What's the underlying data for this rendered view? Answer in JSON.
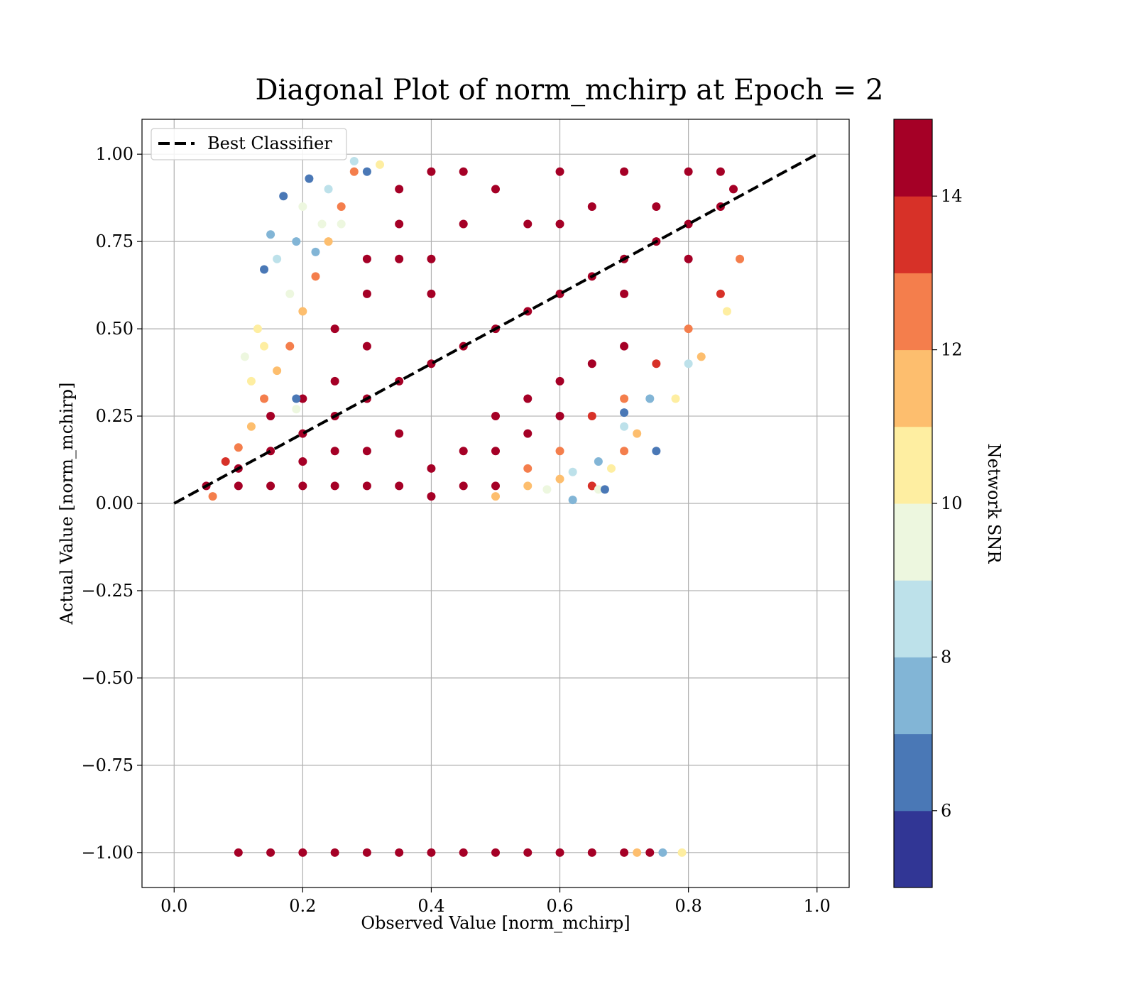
{
  "chart_data": {
    "type": "scatter",
    "title": "Diagonal Plot of norm_mchirp at Epoch = 2",
    "xlabel": "Observed Value [norm_mchirp]",
    "ylabel": "Actual Value [norm_mchirp]",
    "xlim": [
      -0.05,
      1.05
    ],
    "ylim": [
      -1.1,
      1.1
    ],
    "xticks": [
      0.0,
      0.2,
      0.4,
      0.6,
      0.8,
      1.0
    ],
    "xtick_labels": [
      "0.0",
      "0.2",
      "0.4",
      "0.6",
      "0.8",
      "1.0"
    ],
    "yticks": [
      1.0,
      0.75,
      0.5,
      0.25,
      0.0,
      -0.25,
      -0.5,
      -0.75,
      -1.0
    ],
    "ytick_labels": [
      "1.00",
      "0.75",
      "0.50",
      "0.25",
      "0.00",
      "−0.25",
      "−0.50",
      "−0.75",
      "−1.00"
    ],
    "grid": true,
    "legend": {
      "position": "top-left",
      "entries": [
        {
          "label": "Best Classifier",
          "style": "dashed",
          "color": "#000000"
        }
      ]
    },
    "reference_line": {
      "label": "Best Classifier",
      "x": [
        0.0,
        1.0
      ],
      "y": [
        0.0,
        1.0
      ]
    },
    "colorbar": {
      "label": "Network SNR",
      "range": [
        5,
        15
      ],
      "ticks": [
        6,
        8,
        10,
        12,
        14
      ],
      "tick_labels": [
        "6",
        "8",
        "10",
        "12",
        "14"
      ],
      "colors": [
        "#313695",
        "#4a78b6",
        "#82b5d6",
        "#bde1ea",
        "#edf7df",
        "#feeea1",
        "#fdbe6e",
        "#f47e4c",
        "#d73128",
        "#a50026"
      ]
    },
    "series": [
      {
        "marker": "circle",
        "colored_by": "Network SNR",
        "points": [
          [
            0.05,
            0.05,
            15
          ],
          [
            0.1,
            0.1,
            15
          ],
          [
            0.15,
            0.15,
            15
          ],
          [
            0.2,
            0.2,
            15
          ],
          [
            0.25,
            0.25,
            15
          ],
          [
            0.3,
            0.3,
            15
          ],
          [
            0.35,
            0.35,
            15
          ],
          [
            0.4,
            0.4,
            15
          ],
          [
            0.45,
            0.45,
            15
          ],
          [
            0.5,
            0.5,
            15
          ],
          [
            0.55,
            0.55,
            15
          ],
          [
            0.6,
            0.6,
            15
          ],
          [
            0.65,
            0.65,
            15
          ],
          [
            0.7,
            0.7,
            15
          ],
          [
            0.75,
            0.75,
            15
          ],
          [
            0.8,
            0.8,
            15
          ],
          [
            0.85,
            0.85,
            15
          ],
          [
            0.4,
            0.95,
            15
          ],
          [
            0.45,
            0.95,
            15
          ],
          [
            0.5,
            0.9,
            15
          ],
          [
            0.6,
            0.95,
            15
          ],
          [
            0.7,
            0.95,
            15
          ],
          [
            0.8,
            0.95,
            15
          ],
          [
            0.85,
            0.95,
            15
          ],
          [
            0.87,
            0.9,
            15
          ],
          [
            0.3,
            0.6,
            15
          ],
          [
            0.35,
            0.7,
            15
          ],
          [
            0.35,
            0.8,
            15
          ],
          [
            0.4,
            0.7,
            15
          ],
          [
            0.4,
            0.6,
            15
          ],
          [
            0.45,
            0.8,
            15
          ],
          [
            0.55,
            0.8,
            15
          ],
          [
            0.6,
            0.8,
            15
          ],
          [
            0.65,
            0.85,
            15
          ],
          [
            0.75,
            0.85,
            15
          ],
          [
            0.7,
            0.6,
            15
          ],
          [
            0.8,
            0.7,
            15
          ],
          [
            0.1,
            0.05,
            15
          ],
          [
            0.15,
            0.05,
            15
          ],
          [
            0.2,
            0.05,
            15
          ],
          [
            0.25,
            0.05,
            15
          ],
          [
            0.3,
            0.05,
            15
          ],
          [
            0.35,
            0.05,
            15
          ],
          [
            0.4,
            0.02,
            15
          ],
          [
            0.45,
            0.05,
            15
          ],
          [
            0.5,
            0.05,
            15
          ],
          [
            0.4,
            0.1,
            15
          ],
          [
            0.45,
            0.15,
            15
          ],
          [
            0.5,
            0.25,
            15
          ],
          [
            0.55,
            0.3,
            15
          ],
          [
            0.6,
            0.35,
            15
          ],
          [
            0.5,
            0.15,
            15
          ],
          [
            0.55,
            0.2,
            15
          ],
          [
            0.6,
            0.25,
            15
          ],
          [
            0.65,
            0.4,
            15
          ],
          [
            0.7,
            0.45,
            15
          ],
          [
            0.3,
            0.15,
            15
          ],
          [
            0.35,
            0.2,
            15
          ],
          [
            0.25,
            0.15,
            15
          ],
          [
            0.2,
            0.12,
            15
          ],
          [
            0.25,
            0.35,
            15
          ],
          [
            0.2,
            0.3,
            15
          ],
          [
            0.15,
            0.25,
            15
          ],
          [
            0.3,
            0.45,
            15
          ],
          [
            0.25,
            0.5,
            15
          ],
          [
            0.3,
            0.7,
            15
          ],
          [
            0.35,
            0.9,
            15
          ],
          [
            0.55,
            0.1,
            12
          ],
          [
            0.6,
            0.15,
            12
          ],
          [
            0.65,
            0.25,
            13
          ],
          [
            0.7,
            0.3,
            12
          ],
          [
            0.75,
            0.4,
            13
          ],
          [
            0.8,
            0.5,
            12
          ],
          [
            0.85,
            0.6,
            13
          ],
          [
            0.88,
            0.7,
            12
          ],
          [
            0.65,
            0.05,
            13
          ],
          [
            0.7,
            0.15,
            12
          ],
          [
            0.5,
            0.02,
            11
          ],
          [
            0.55,
            0.05,
            11
          ],
          [
            0.6,
            0.07,
            11
          ],
          [
            0.68,
            0.1,
            10
          ],
          [
            0.72,
            0.2,
            11
          ],
          [
            0.78,
            0.3,
            10
          ],
          [
            0.82,
            0.42,
            11
          ],
          [
            0.86,
            0.55,
            10
          ],
          [
            0.62,
            0.09,
            8
          ],
          [
            0.66,
            0.12,
            7
          ],
          [
            0.7,
            0.22,
            8
          ],
          [
            0.74,
            0.3,
            7
          ],
          [
            0.8,
            0.4,
            8
          ],
          [
            0.66,
            0.04,
            9
          ],
          [
            0.58,
            0.04,
            9
          ],
          [
            0.7,
            0.26,
            6
          ],
          [
            0.75,
            0.15,
            6
          ],
          [
            0.67,
            0.04,
            6
          ],
          [
            0.62,
            0.01,
            7
          ],
          [
            0.06,
            0.02,
            12
          ],
          [
            0.08,
            0.12,
            13
          ],
          [
            0.1,
            0.16,
            12
          ],
          [
            0.12,
            0.22,
            11
          ],
          [
            0.14,
            0.3,
            12
          ],
          [
            0.16,
            0.38,
            11
          ],
          [
            0.18,
            0.45,
            12
          ],
          [
            0.2,
            0.55,
            11
          ],
          [
            0.22,
            0.65,
            12
          ],
          [
            0.24,
            0.75,
            11
          ],
          [
            0.26,
            0.85,
            12
          ],
          [
            0.28,
            0.95,
            12
          ],
          [
            0.11,
            0.42,
            9
          ],
          [
            0.13,
            0.5,
            10
          ],
          [
            0.14,
            0.45,
            10
          ],
          [
            0.15,
            0.77,
            7
          ],
          [
            0.16,
            0.7,
            8
          ],
          [
            0.17,
            0.88,
            6
          ],
          [
            0.18,
            0.6,
            9
          ],
          [
            0.19,
            0.75,
            7
          ],
          [
            0.2,
            0.85,
            9
          ],
          [
            0.21,
            0.93,
            6
          ],
          [
            0.22,
            0.72,
            7
          ],
          [
            0.23,
            0.8,
            9
          ],
          [
            0.24,
            0.9,
            8
          ],
          [
            0.26,
            0.8,
            9
          ],
          [
            0.28,
            0.98,
            8
          ],
          [
            0.3,
            0.95,
            6
          ],
          [
            0.32,
            0.97,
            10
          ],
          [
            0.14,
            0.67,
            6
          ],
          [
            0.19,
            0.3,
            6
          ],
          [
            0.19,
            0.27,
            9
          ],
          [
            0.12,
            0.35,
            10
          ],
          [
            0.1,
            -1.0,
            15
          ],
          [
            0.15,
            -1.0,
            15
          ],
          [
            0.2,
            -1.0,
            15
          ],
          [
            0.25,
            -1.0,
            15
          ],
          [
            0.3,
            -1.0,
            15
          ],
          [
            0.35,
            -1.0,
            15
          ],
          [
            0.4,
            -1.0,
            15
          ],
          [
            0.45,
            -1.0,
            15
          ],
          [
            0.5,
            -1.0,
            15
          ],
          [
            0.55,
            -1.0,
            15
          ],
          [
            0.6,
            -1.0,
            15
          ],
          [
            0.65,
            -1.0,
            15
          ],
          [
            0.7,
            -1.0,
            15
          ],
          [
            0.74,
            -1.0,
            15
          ],
          [
            0.72,
            -1.0,
            11
          ],
          [
            0.76,
            -1.0,
            7
          ],
          [
            0.79,
            -1.0,
            10
          ]
        ]
      }
    ]
  }
}
